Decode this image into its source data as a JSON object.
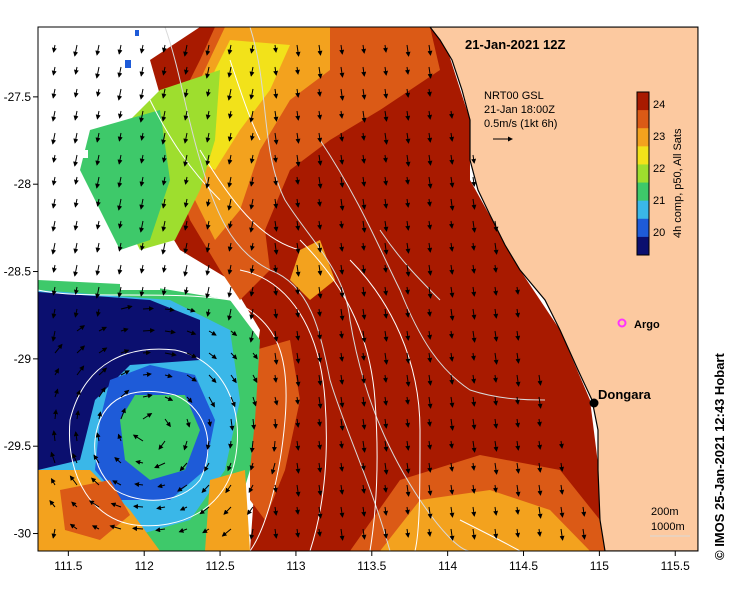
{
  "title": "21-Jan-2021 12Z",
  "velocity_note": {
    "lines": [
      "NRT00 GSL",
      "21-Jan 18:00Z",
      "0.5m/s (1kt 6h)"
    ]
  },
  "colorbar": {
    "label": "4h comp, p50, All Sats",
    "ticks": [
      "24",
      "23",
      "22",
      "21",
      "20"
    ],
    "range": [
      19.5,
      24.5
    ]
  },
  "places": [
    {
      "name": "Argo",
      "marker": "argo-float-icon",
      "color": "#ff33ff"
    },
    {
      "name": "Dongara",
      "marker": "town-dot-icon",
      "color": "#000000"
    }
  ],
  "depth_legend": [
    "200m",
    "1000m"
  ],
  "axes": {
    "x_ticks": [
      "111.5",
      "112",
      "112.5",
      "113",
      "113.5",
      "114",
      "114.5",
      "115",
      "115.5"
    ],
    "y_ticks": [
      "-27.5",
      "-28",
      "-28.5",
      "-29",
      "-29.5",
      "-30"
    ],
    "lon_range": [
      111.3,
      115.65
    ],
    "lat_range": [
      -30.1,
      -27.1
    ]
  },
  "credit": "© IMOS 25-Jan-2021 12:43 Hobart",
  "colors": {
    "land": "#fcc9a0",
    "no_data": "#ffffff",
    "sst_palette": [
      "#0b0f6f",
      "#1e5bd8",
      "#3ab7e8",
      "#3ec96a",
      "#9ede2e",
      "#f2e21a",
      "#f3a21e",
      "#db5a16",
      "#a81a00"
    ],
    "dominant_sst": "#a81a00"
  }
}
